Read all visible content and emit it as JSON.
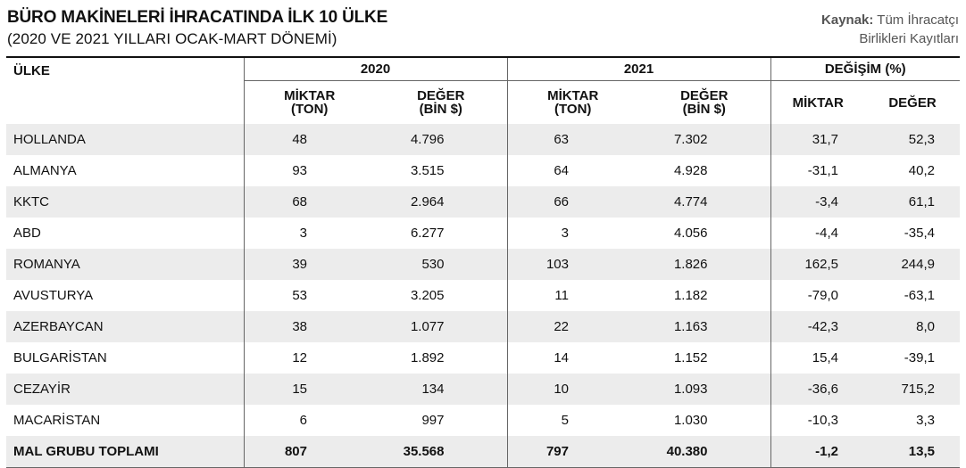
{
  "title": "BÜRO MAKİNELERİ İHRACATINDA İLK 10 ÜLKE",
  "subtitle": "(2020 VE 2021 YILLARI OCAK-MART DÖNEMİ)",
  "source": {
    "label": "Kaynak:",
    "line1": "Tüm İhracatçı",
    "line2": "Birlikleri Kayıtları"
  },
  "headers": {
    "country": "ÜLKE",
    "year2020": "2020",
    "year2021": "2021",
    "change": "DEĞİŞİM (%)",
    "qty2020_1": "MİKTAR",
    "qty2020_2": "(TON)",
    "val2020_1": "DEĞER",
    "val2020_2": "(BİN $)",
    "qty2021_1": "MİKTAR",
    "qty2021_2": "(TON)",
    "val2021_1": "DEĞER",
    "val2021_2": "(BİN $)",
    "chg_qty": "MİKTAR",
    "chg_val": "DEĞER"
  },
  "rows": [
    {
      "country": "HOLLANDA",
      "q20": "48",
      "v20": "4.796",
      "q21": "63",
      "v21": "7.302",
      "cq": "31,7",
      "cv": "52,3"
    },
    {
      "country": "ALMANYA",
      "q20": "93",
      "v20": "3.515",
      "q21": "64",
      "v21": "4.928",
      "cq": "-31,1",
      "cv": "40,2"
    },
    {
      "country": "KKTC",
      "q20": "68",
      "v20": "2.964",
      "q21": "66",
      "v21": "4.774",
      "cq": "-3,4",
      "cv": "61,1"
    },
    {
      "country": "ABD",
      "q20": "3",
      "v20": "6.277",
      "q21": "3",
      "v21": "4.056",
      "cq": "-4,4",
      "cv": "-35,4"
    },
    {
      "country": "ROMANYA",
      "q20": "39",
      "v20": "530",
      "q21": "103",
      "v21": "1.826",
      "cq": "162,5",
      "cv": "244,9"
    },
    {
      "country": "AVUSTURYA",
      "q20": "53",
      "v20": "3.205",
      "q21": "11",
      "v21": "1.182",
      "cq": "-79,0",
      "cv": "-63,1"
    },
    {
      "country": "AZERBAYCAN",
      "q20": "38",
      "v20": "1.077",
      "q21": "22",
      "v21": "1.163",
      "cq": "-42,3",
      "cv": "8,0"
    },
    {
      "country": "BULGARİSTAN",
      "q20": "12",
      "v20": "1.892",
      "q21": "14",
      "v21": "1.152",
      "cq": "15,4",
      "cv": "-39,1"
    },
    {
      "country": "CEZAYİR",
      "q20": "15",
      "v20": "134",
      "q21": "10",
      "v21": "1.093",
      "cq": "-36,6",
      "cv": "715,2"
    },
    {
      "country": "MACARİSTAN",
      "q20": "6",
      "v20": "997",
      "q21": "5",
      "v21": "1.030",
      "cq": "-10,3",
      "cv": "3,3"
    }
  ],
  "total": {
    "country": "MAL GRUBU TOPLAMI",
    "q20": "807",
    "v20": "35.568",
    "q21": "797",
    "v21": "40.380",
    "cq": "-1,2",
    "cv": "13,5"
  }
}
